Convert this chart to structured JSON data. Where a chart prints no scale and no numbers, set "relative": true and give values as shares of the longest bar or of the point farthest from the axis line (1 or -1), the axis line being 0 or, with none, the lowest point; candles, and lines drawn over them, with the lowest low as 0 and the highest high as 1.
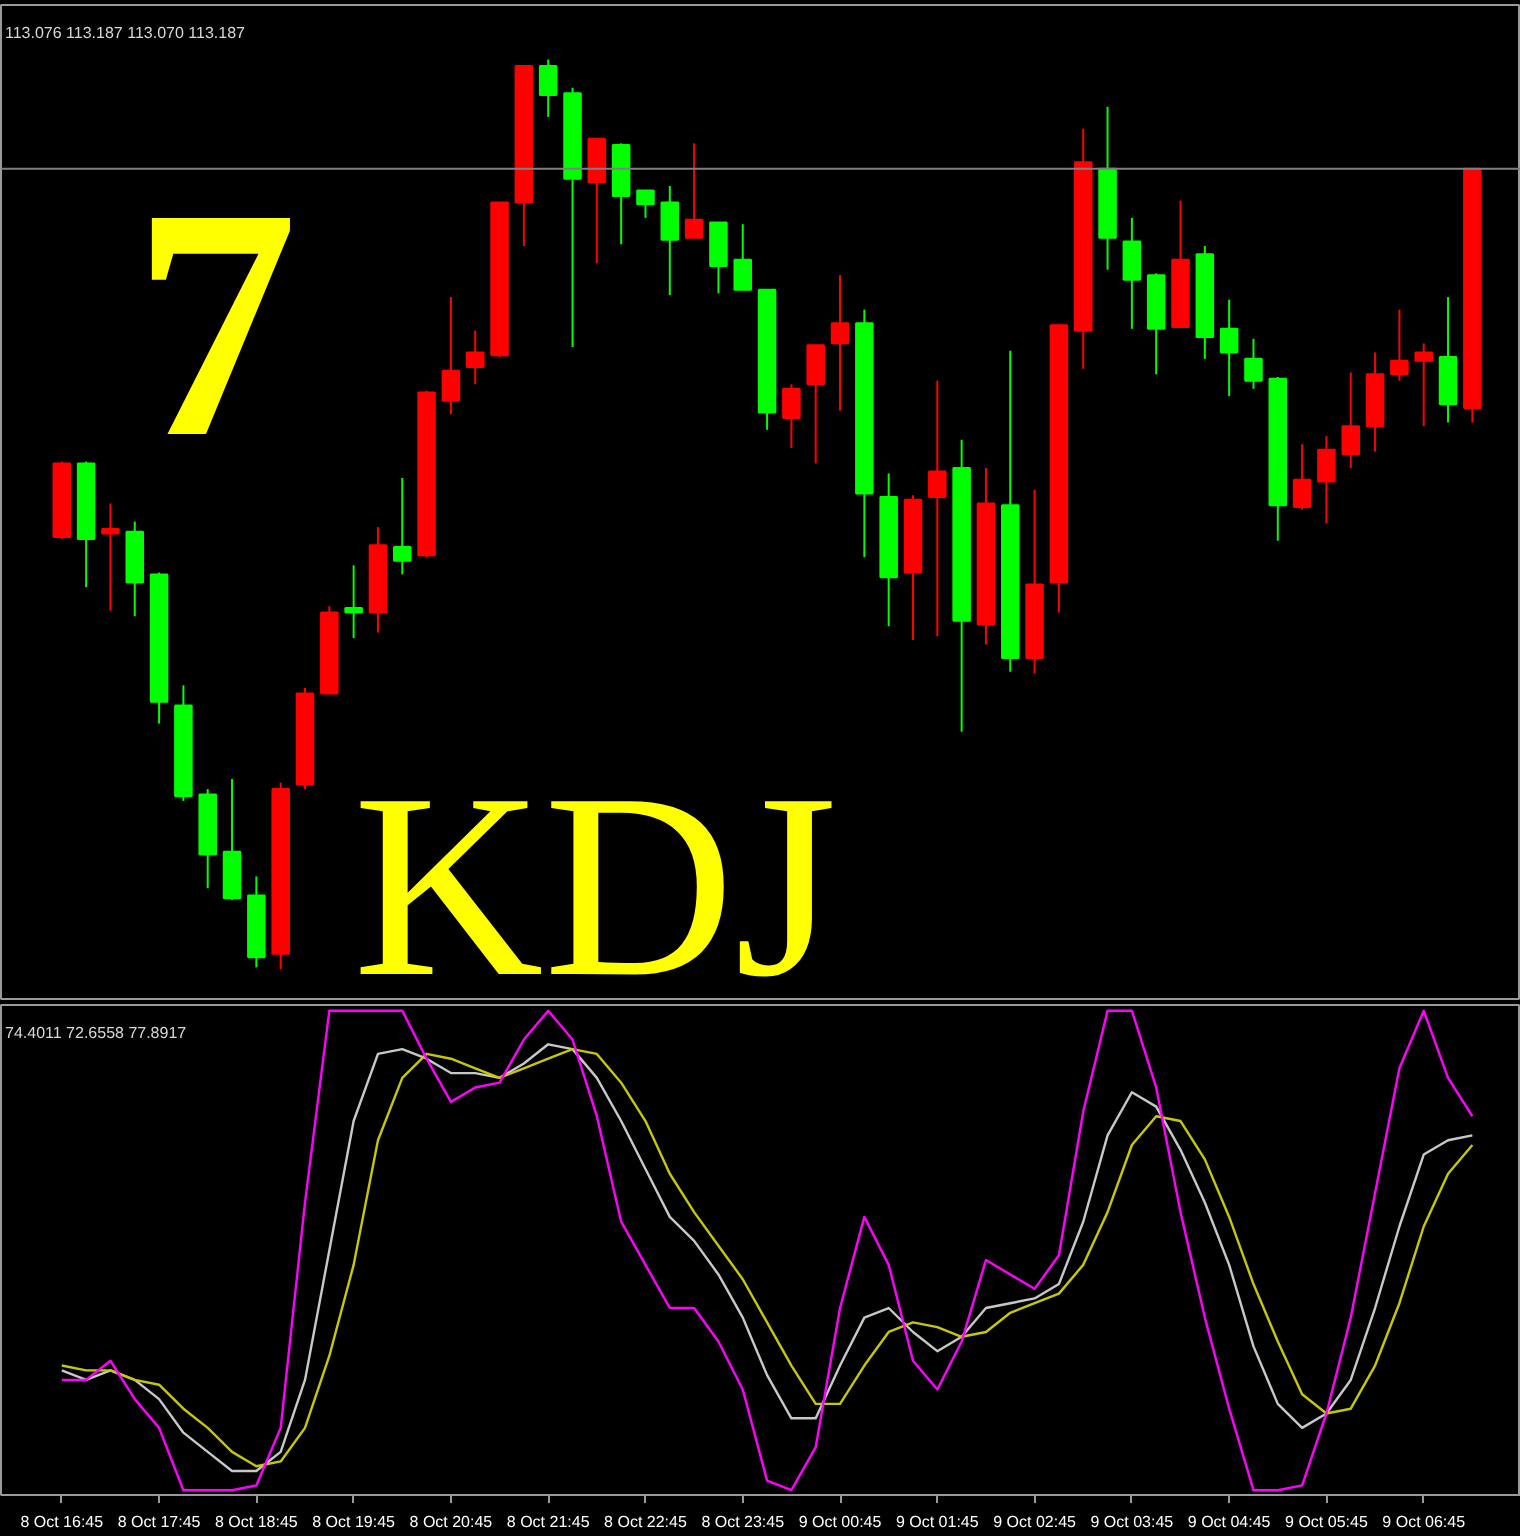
{
  "chart_data": [
    {
      "type": "candlestick",
      "relative": true,
      "tick_labels": false,
      "annotations": [
        "113.076 113.187 113.070 113.187",
        "7",
        "KDJ"
      ],
      "ref_lines": [
        {
          "axis": "y",
          "value": 0.88,
          "color": "#808080"
        }
      ],
      "categories": [
        null,
        null,
        null,
        null,
        null,
        null,
        null,
        null,
        null,
        null,
        null,
        null,
        null,
        null,
        null,
        null,
        null,
        null,
        null,
        null,
        null,
        null,
        null,
        null,
        null,
        null,
        null,
        null,
        null,
        null,
        null,
        null,
        null,
        null,
        null,
        null,
        null,
        null,
        null,
        null,
        null,
        null,
        null,
        null,
        null,
        null,
        null,
        null,
        null,
        null,
        null,
        null,
        null,
        null,
        null,
        null,
        null,
        null,
        null
      ],
      "ohlc": [
        [
          0.475,
          0.558,
          0.473,
          0.556
        ],
        [
          0.556,
          0.558,
          0.42,
          0.473
        ],
        [
          0.479,
          0.512,
          0.394,
          0.484
        ],
        [
          0.481,
          0.492,
          0.388,
          0.425
        ],
        [
          0.434,
          0.436,
          0.27,
          0.294
        ],
        [
          0.29,
          0.312,
          0.185,
          0.19
        ],
        [
          0.192,
          0.198,
          0.089,
          0.126
        ],
        [
          0.129,
          0.209,
          0.076,
          0.078
        ],
        [
          0.081,
          0.102,
          0.002,
          0.013
        ],
        [
          0.017,
          0.205,
          0.0,
          0.198
        ],
        [
          0.203,
          0.309,
          0.198,
          0.303
        ],
        [
          0.303,
          0.399,
          0.303,
          0.392
        ],
        [
          0.397,
          0.444,
          0.364,
          0.392
        ],
        [
          0.392,
          0.486,
          0.37,
          0.466
        ],
        [
          0.464,
          0.54,
          0.434,
          0.449
        ],
        [
          0.455,
          0.636,
          0.453,
          0.634
        ],
        [
          0.625,
          0.739,
          0.61,
          0.658
        ],
        [
          0.662,
          0.702,
          0.643,
          0.678
        ],
        [
          0.675,
          0.843,
          0.673,
          0.843
        ],
        [
          0.843,
          0.993,
          0.795,
          0.993
        ],
        [
          0.993,
          1.0,
          0.937,
          0.961
        ],
        [
          0.963,
          0.969,
          0.684,
          0.869
        ],
        [
          0.865,
          0.913,
          0.776,
          0.913
        ],
        [
          0.906,
          0.908,
          0.797,
          0.85
        ],
        [
          0.856,
          0.856,
          0.826,
          0.841
        ],
        [
          0.843,
          0.861,
          0.741,
          0.802
        ],
        [
          0.804,
          0.908,
          0.804,
          0.824
        ],
        [
          0.821,
          0.821,
          0.743,
          0.773
        ],
        [
          0.78,
          0.819,
          0.747,
          0.747
        ],
        [
          0.747,
          0.747,
          0.593,
          0.612
        ],
        [
          0.606,
          0.643,
          0.573,
          0.638
        ],
        [
          0.643,
          0.686,
          0.556,
          0.686
        ],
        [
          0.688,
          0.763,
          0.614,
          0.71
        ],
        [
          0.71,
          0.725,
          0.453,
          0.523
        ],
        [
          0.519,
          0.545,
          0.377,
          0.431
        ],
        [
          0.436,
          0.521,
          0.362,
          0.516
        ],
        [
          0.519,
          0.647,
          0.366,
          0.547
        ],
        [
          0.551,
          0.582,
          0.261,
          0.383
        ],
        [
          0.379,
          0.551,
          0.357,
          0.512
        ],
        [
          0.51,
          0.68,
          0.327,
          0.342
        ],
        [
          0.342,
          0.527,
          0.325,
          0.423
        ],
        [
          0.425,
          0.708,
          0.392,
          0.708
        ],
        [
          0.702,
          0.924,
          0.66,
          0.887
        ],
        [
          0.88,
          0.948,
          0.769,
          0.804
        ],
        [
          0.8,
          0.826,
          0.704,
          0.758
        ],
        [
          0.763,
          0.765,
          0.654,
          0.704
        ],
        [
          0.706,
          0.845,
          0.706,
          0.78
        ],
        [
          0.786,
          0.795,
          0.671,
          0.695
        ],
        [
          0.704,
          0.736,
          0.63,
          0.678
        ],
        [
          0.671,
          0.693,
          0.638,
          0.647
        ],
        [
          0.649,
          0.651,
          0.471,
          0.51
        ],
        [
          0.508,
          0.577,
          0.505,
          0.538
        ],
        [
          0.536,
          0.586,
          0.49,
          0.571
        ],
        [
          0.566,
          0.656,
          0.551,
          0.597
        ],
        [
          0.597,
          0.678,
          0.569,
          0.654
        ],
        [
          0.654,
          0.725,
          0.647,
          0.669
        ],
        [
          0.669,
          0.688,
          0.597,
          0.678
        ],
        [
          0.673,
          0.739,
          0.601,
          0.621
        ],
        [
          0.617,
          0.88,
          0.601,
          0.88
        ]
      ],
      "colors": [
        "#ff0000",
        "#00ff00",
        "#ff0000",
        "#00ff00",
        "#00ff00",
        "#00ff00",
        "#00ff00",
        "#00ff00",
        "#00ff00",
        "#ff0000",
        "#ff0000",
        "#ff0000",
        "#00ff00",
        "#ff0000",
        "#00ff00",
        "#ff0000",
        "#ff0000",
        "#ff0000",
        "#ff0000",
        "#ff0000",
        "#00ff00",
        "#00ff00",
        "#ff0000",
        "#00ff00",
        "#00ff00",
        "#00ff00",
        "#ff0000",
        "#00ff00",
        "#00ff00",
        "#00ff00",
        "#ff0000",
        "#ff0000",
        "#ff0000",
        "#00ff00",
        "#00ff00",
        "#ff0000",
        "#ff0000",
        "#00ff00",
        "#ff0000",
        "#00ff00",
        "#ff0000",
        "#ff0000",
        "#ff0000",
        "#00ff00",
        "#00ff00",
        "#00ff00",
        "#ff0000",
        "#00ff00",
        "#00ff00",
        "#00ff00",
        "#00ff00",
        "#ff0000",
        "#ff0000",
        "#ff0000",
        "#ff0000",
        "#ff0000",
        "#ff0000",
        "#00ff00",
        "#ff0000"
      ]
    },
    {
      "type": "line",
      "relative": true,
      "tick_labels": "x",
      "annotations": [
        "74.4011 72.6558 77.8917"
      ],
      "categories": [
        "8 Oct 16:45",
        null,
        null,
        null,
        "8 Oct 17:45",
        null,
        null,
        null,
        "8 Oct 18:45",
        null,
        null,
        null,
        "8 Oct 19:45",
        null,
        null,
        null,
        "8 Oct 20:45",
        null,
        null,
        null,
        "8 Oct 21:45",
        null,
        null,
        null,
        "8 Oct 22:45",
        null,
        null,
        null,
        "8 Oct 23:45",
        null,
        null,
        null,
        "9 Oct 00:45",
        null,
        null,
        null,
        "9 Oct 01:45",
        null,
        null,
        null,
        "9 Oct 02:45",
        null,
        null,
        null,
        "9 Oct 03:45",
        null,
        null,
        null,
        "9 Oct 04:45",
        null,
        null,
        null,
        "9 Oct 05:45",
        null,
        null,
        null,
        "9 Oct 06:45",
        null,
        null
      ],
      "series": [
        {
          "color": "#c8c8c8",
          "values": [
            0.25,
            0.23,
            0.25,
            0.23,
            0.19,
            0.12,
            0.08,
            0.04,
            0.04,
            0.08,
            0.23,
            0.5,
            0.77,
            0.91,
            0.92,
            0.9,
            0.87,
            0.87,
            0.86,
            0.89,
            0.93,
            0.92,
            0.86,
            0.77,
            0.67,
            0.57,
            0.52,
            0.45,
            0.36,
            0.24,
            0.15,
            0.15,
            0.26,
            0.36,
            0.38,
            0.33,
            0.29,
            0.32,
            0.38,
            0.39,
            0.4,
            0.43,
            0.56,
            0.74,
            0.83,
            0.8,
            0.71,
            0.6,
            0.47,
            0.3,
            0.18,
            0.13,
            0.16,
            0.23,
            0.38,
            0.55,
            0.7,
            0.73,
            0.74
          ]
        },
        {
          "color": "#c8c800",
          "values": [
            0.26,
            0.25,
            0.25,
            0.23,
            0.22,
            0.17,
            0.13,
            0.08,
            0.05,
            0.06,
            0.13,
            0.28,
            0.47,
            0.73,
            0.86,
            0.91,
            0.9,
            0.88,
            0.86,
            0.88,
            0.9,
            0.92,
            0.91,
            0.85,
            0.77,
            0.66,
            0.58,
            0.51,
            0.44,
            0.35,
            0.26,
            0.18,
            0.18,
            0.26,
            0.33,
            0.35,
            0.34,
            0.32,
            0.33,
            0.37,
            0.39,
            0.41,
            0.47,
            0.58,
            0.72,
            0.78,
            0.77,
            0.69,
            0.57,
            0.43,
            0.31,
            0.2,
            0.16,
            0.17,
            0.26,
            0.39,
            0.55,
            0.66,
            0.72
          ]
        },
        {
          "color": "#ff00ff",
          "values": [
            0.23,
            0.23,
            0.27,
            0.19,
            0.13,
            0.0,
            0,
            0,
            0.01,
            0.13,
            0.6,
            1,
            1,
            1,
            1,
            0.9,
            0.81,
            0.84,
            0.85,
            0.94,
            1,
            0.94,
            0.78,
            0.56,
            0.47,
            0.38,
            0.38,
            0.31,
            0.21,
            0.02,
            0,
            0.09,
            0.38,
            0.57,
            0.47,
            0.27,
            0.21,
            0.31,
            0.48,
            0.45,
            0.42,
            0.49,
            0.79,
            1,
            1,
            0.84,
            0.58,
            0.36,
            0.17,
            0,
            0,
            0.01,
            0.16,
            0.36,
            0.62,
            0.88,
            1,
            0.86,
            0.78
          ]
        }
      ]
    }
  ]
}
